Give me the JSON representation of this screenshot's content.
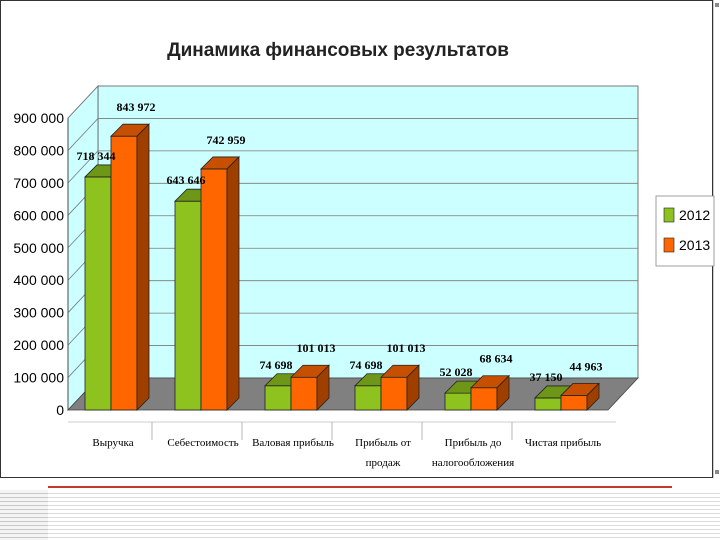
{
  "colors": {
    "series_2012": "#8dc21f",
    "series_2013": "#ff6600",
    "wall": "#ccffff",
    "floor": "#808080"
  },
  "chart_data": {
    "type": "bar",
    "title": "Динамика финансовых результатов",
    "categories": [
      [
        "Выручка"
      ],
      [
        "Себестоимость"
      ],
      [
        "Валовая прибыль"
      ],
      [
        "Прибыль от",
        "продаж"
      ],
      [
        "Прибыль до",
        "налогообложения"
      ],
      [
        "Чистая прибыль"
      ]
    ],
    "series": [
      {
        "name": "2012",
        "values": [
          718344,
          643646,
          74698,
          74698,
          52028,
          37150
        ],
        "labels": [
          "718 344",
          "643 646",
          "74 698",
          "74 698",
          "52 028",
          "37 150"
        ]
      },
      {
        "name": "2013",
        "values": [
          843972,
          742959,
          101013,
          101013,
          68634,
          44963
        ],
        "labels": [
          "843 972",
          "742 959",
          "101 013",
          "101 013",
          "68 634",
          "44 963"
        ]
      }
    ],
    "yticks": [
      "0",
      "100 000",
      "200 000",
      "300 000",
      "400 000",
      "500 000",
      "600 000",
      "700 000",
      "800 000",
      "900 000"
    ],
    "ylim": [
      0,
      900000
    ],
    "legend": "right",
    "grid": true
  }
}
